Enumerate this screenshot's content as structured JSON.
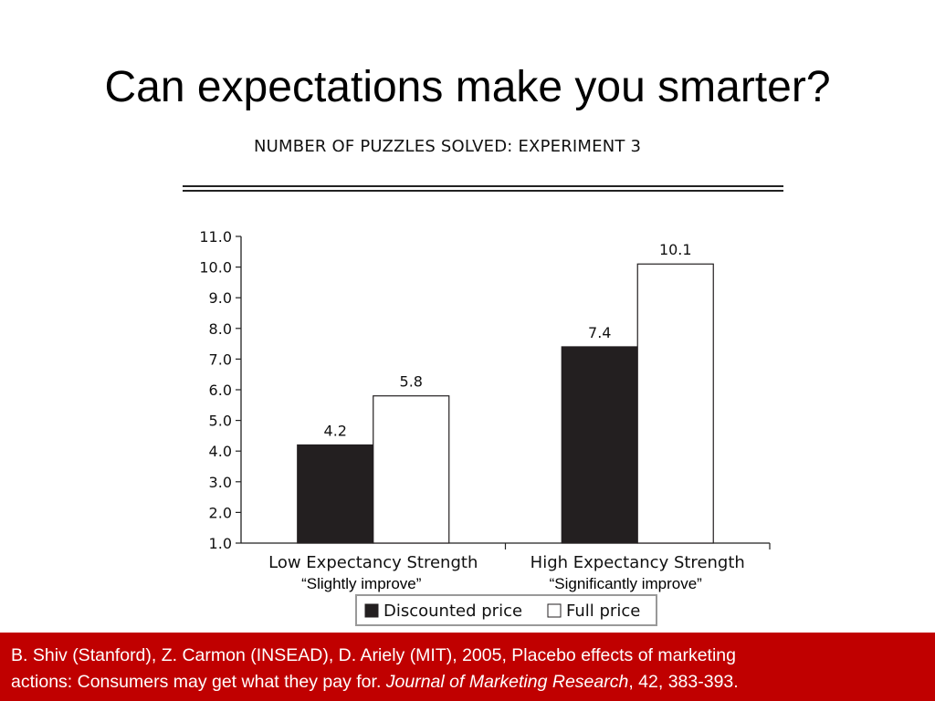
{
  "slide": {
    "title": "Can expectations make you smarter?"
  },
  "chart_data": {
    "type": "bar",
    "title": "NUMBER OF PUZZLES SOLVED: EXPERIMENT 3",
    "categories": [
      "Low Expectancy Strength",
      "High Expectancy Strength"
    ],
    "category_annotations": [
      "“Slightly improve”",
      "“Significantly improve”"
    ],
    "series": [
      {
        "name": "Discounted price",
        "values": [
          4.2,
          7.4
        ],
        "color": "#231f20"
      },
      {
        "name": "Full price",
        "values": [
          5.8,
          10.1
        ],
        "color": "#ffffff"
      }
    ],
    "data_labels": [
      "4.2",
      "5.8",
      "7.4",
      "10.1"
    ],
    "y_ticks": [
      "1.0",
      "2.0",
      "3.0",
      "4.0",
      "5.0",
      "6.0",
      "7.0",
      "8.0",
      "9.0",
      "10.0",
      "11.0"
    ],
    "ylim": [
      1.0,
      11.0
    ],
    "xlabel": "",
    "ylabel": "",
    "grid": false,
    "legend_position": "bottom-center"
  },
  "footer": {
    "line1": "B. Shiv (Stanford), Z. Carmon (INSEAD), D. Ariely (MIT), 2005, Placebo effects of marketing",
    "line2_prefix": "actions: Consumers may get what they pay for. ",
    "journal": "Journal of Marketing Research",
    "line2_suffix": ", 42, 383-393.",
    "background": "#c00000"
  }
}
